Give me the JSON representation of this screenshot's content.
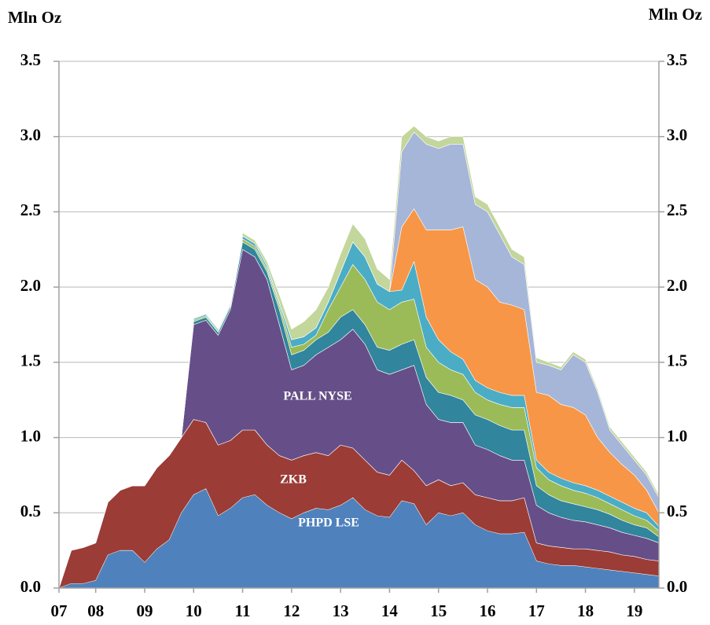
{
  "chart_data": {
    "type": "stacked_area",
    "ylabel": "Mln Oz",
    "y2label": "Mln Oz",
    "x": [
      2007.25,
      2007.5,
      2007.75,
      2008,
      2008.25,
      2008.5,
      2008.75,
      2009,
      2009.25,
      2009.5,
      2009.75,
      2010,
      2010.25,
      2010.5,
      2010.75,
      2011,
      2011.25,
      2011.5,
      2011.75,
      2012,
      2012.25,
      2012.5,
      2012.75,
      2013,
      2013.25,
      2013.5,
      2013.75,
      2014,
      2014.25,
      2014.5,
      2014.75,
      2015,
      2015.25,
      2015.5,
      2015.75,
      2016,
      2016.25,
      2016.5,
      2016.75,
      2017,
      2017.25,
      2017.5,
      2017.75,
      2018,
      2018.25,
      2018.5,
      2018.75,
      2019,
      2019.25,
      2019.5
    ],
    "xlim": [
      2007.25,
      2019.5
    ],
    "xticks": [
      {
        "value": 2007.25,
        "label": "07"
      },
      {
        "value": 2008,
        "label": "08"
      },
      {
        "value": 2009,
        "label": "09"
      },
      {
        "value": 2010,
        "label": "10"
      },
      {
        "value": 2011,
        "label": "11"
      },
      {
        "value": 2012,
        "label": "12"
      },
      {
        "value": 2013,
        "label": "13"
      },
      {
        "value": 2014,
        "label": "14"
      },
      {
        "value": 2015,
        "label": "15"
      },
      {
        "value": 2016,
        "label": "16"
      },
      {
        "value": 2017,
        "label": "17"
      },
      {
        "value": 2018,
        "label": "18"
      },
      {
        "value": 2019,
        "label": "19"
      }
    ],
    "ylim": [
      0,
      3.5
    ],
    "yticks": [
      {
        "value": 0,
        "label": "0.0"
      },
      0.5,
      {
        "value": 1,
        "label": "1.0"
      },
      1.5,
      {
        "value": 2,
        "label": "2.0"
      },
      2.5,
      {
        "value": 3,
        "label": "3.0"
      },
      3.5
    ],
    "y2lim": [
      0,
      3.5
    ],
    "y2ticks": [
      {
        "value": 0,
        "label": "0.0"
      },
      0.5,
      {
        "value": 1,
        "label": "1.0"
      },
      1.5,
      {
        "value": 2,
        "label": "2.0"
      },
      2.5,
      {
        "value": 3,
        "label": "3.0"
      },
      3.5
    ],
    "grid": true,
    "series": [
      {
        "name": "PHPD LSE",
        "color": "#4f81bd",
        "values": [
          0,
          0.03,
          0.03,
          0.05,
          0.22,
          0.25,
          0.25,
          0.17,
          0.26,
          0.32,
          0.5,
          0.62,
          0.66,
          0.48,
          0.53,
          0.6,
          0.62,
          0.55,
          0.5,
          0.46,
          0.5,
          0.53,
          0.52,
          0.55,
          0.6,
          0.52,
          0.48,
          0.47,
          0.58,
          0.56,
          0.42,
          0.5,
          0.48,
          0.5,
          0.42,
          0.38,
          0.36,
          0.36,
          0.37,
          0.18,
          0.16,
          0.15,
          0.15,
          0.14,
          0.13,
          0.12,
          0.11,
          0.1,
          0.09,
          0.08
        ]
      },
      {
        "name": "ZKB",
        "color": "#9b3c37",
        "values": [
          0,
          0.22,
          0.24,
          0.25,
          0.35,
          0.4,
          0.43,
          0.51,
          0.54,
          0.56,
          0.5,
          0.5,
          0.44,
          0.47,
          0.45,
          0.45,
          0.43,
          0.4,
          0.38,
          0.39,
          0.38,
          0.37,
          0.36,
          0.4,
          0.33,
          0.33,
          0.29,
          0.28,
          0.27,
          0.22,
          0.26,
          0.22,
          0.2,
          0.2,
          0.2,
          0.22,
          0.22,
          0.22,
          0.23,
          0.12,
          0.12,
          0.12,
          0.11,
          0.12,
          0.12,
          0.12,
          0.11,
          0.11,
          0.1,
          0.1
        ]
      },
      {
        "name": "PALL NYSE",
        "color": "#664f88",
        "values": [
          0,
          0,
          0,
          0,
          0,
          0,
          0,
          0,
          0,
          0,
          0,
          0.63,
          0.68,
          0.73,
          0.87,
          1.2,
          1.15,
          1.1,
          0.87,
          0.6,
          0.6,
          0.65,
          0.72,
          0.7,
          0.79,
          0.77,
          0.68,
          0.67,
          0.6,
          0.7,
          0.54,
          0.4,
          0.42,
          0.4,
          0.33,
          0.32,
          0.3,
          0.27,
          0.25,
          0.25,
          0.22,
          0.2,
          0.19,
          0.18,
          0.17,
          0.16,
          0.15,
          0.14,
          0.14,
          0.12
        ]
      },
      {
        "color": "#31859c",
        "values": [
          0,
          0,
          0,
          0,
          0,
          0,
          0,
          0,
          0,
          0,
          0,
          0.02,
          0.02,
          0.02,
          0.02,
          0.05,
          0.05,
          0.05,
          0.1,
          0.1,
          0.1,
          0.1,
          0.1,
          0.15,
          0.13,
          0.13,
          0.15,
          0.16,
          0.17,
          0.17,
          0.18,
          0.18,
          0.18,
          0.15,
          0.2,
          0.2,
          0.2,
          0.2,
          0.2,
          0.13,
          0.12,
          0.11,
          0.11,
          0.1,
          0.1,
          0.09,
          0.08,
          0.07,
          0.07,
          0.04
        ]
      },
      {
        "color": "#9bbb59",
        "values": [
          0,
          0,
          0,
          0,
          0,
          0,
          0,
          0,
          0,
          0,
          0,
          0.01,
          0.01,
          0.01,
          0.01,
          0.02,
          0.02,
          0.02,
          0.03,
          0.05,
          0.04,
          0.03,
          0.15,
          0.2,
          0.3,
          0.3,
          0.3,
          0.27,
          0.28,
          0.27,
          0.2,
          0.2,
          0.17,
          0.17,
          0.15,
          0.13,
          0.14,
          0.15,
          0.15,
          0.12,
          0.1,
          0.1,
          0.09,
          0.09,
          0.08,
          0.07,
          0.07,
          0.06,
          0.05,
          0.04
        ]
      },
      {
        "color": "#4bacc6",
        "values": [
          0,
          0,
          0,
          0,
          0,
          0,
          0,
          0,
          0,
          0,
          0,
          0.01,
          0.01,
          0.01,
          0.01,
          0.02,
          0.02,
          0.02,
          0.02,
          0.05,
          0.05,
          0.05,
          0.05,
          0.1,
          0.15,
          0.15,
          0.12,
          0.12,
          0.08,
          0.25,
          0.2,
          0.15,
          0.12,
          0.1,
          0.08,
          0.08,
          0.08,
          0.08,
          0.08,
          0.05,
          0.05,
          0.05,
          0.05,
          0.05,
          0.05,
          0.05,
          0.05,
          0.05,
          0.05,
          0.03
        ]
      },
      {
        "color": "#f79646",
        "values": [
          0,
          0,
          0,
          0,
          0,
          0,
          0,
          0,
          0,
          0,
          0,
          0,
          0,
          0,
          0,
          0,
          0,
          0,
          0,
          0,
          0,
          0,
          0,
          0,
          0,
          0,
          0,
          0,
          0.42,
          0.35,
          0.58,
          0.73,
          0.81,
          0.88,
          0.67,
          0.67,
          0.6,
          0.6,
          0.57,
          0.45,
          0.51,
          0.49,
          0.5,
          0.47,
          0.35,
          0.29,
          0.25,
          0.22,
          0.15,
          0.09
        ]
      },
      {
        "color": "#a6b6d8",
        "values": [
          0,
          0,
          0,
          0,
          0,
          0,
          0,
          0,
          0,
          0,
          0,
          0,
          0,
          0,
          0,
          0,
          0,
          0,
          0,
          0,
          0,
          0,
          0,
          0,
          0,
          0,
          0,
          0,
          0.5,
          0.51,
          0.57,
          0.54,
          0.57,
          0.55,
          0.5,
          0.5,
          0.45,
          0.32,
          0.3,
          0.2,
          0.2,
          0.23,
          0.35,
          0.35,
          0.3,
          0.15,
          0.13,
          0.1,
          0.1,
          0.1
        ]
      },
      {
        "color": "#c3d69b",
        "values": [
          0,
          0,
          0,
          0,
          0,
          0,
          0,
          0,
          0,
          0,
          0,
          0,
          0,
          0,
          0.01,
          0.02,
          0.02,
          0.03,
          0.05,
          0.07,
          0.1,
          0.12,
          0.1,
          0.12,
          0.12,
          0.12,
          0.1,
          0.08,
          0.1,
          0.04,
          0.05,
          0.05,
          0.05,
          0.05,
          0.05,
          0.05,
          0.05,
          0.05,
          0.05,
          0.03,
          0.02,
          0.02,
          0.02,
          0.02,
          0.02,
          0.02,
          0.02,
          0.02,
          0.02,
          0.02
        ]
      }
    ]
  }
}
